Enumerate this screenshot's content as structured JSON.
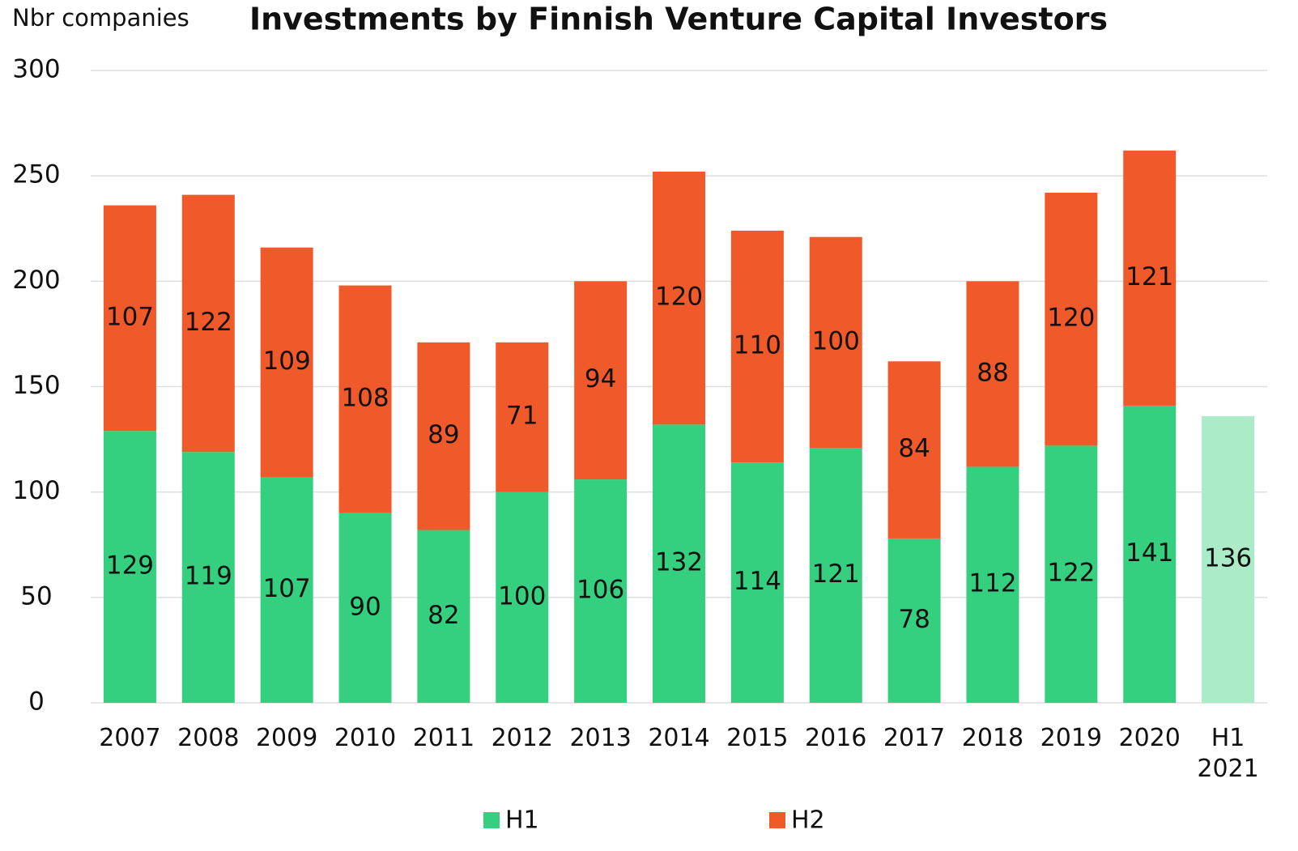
{
  "chart_data": {
    "type": "stacked_bar",
    "title": "Investments by Finnish Venture Capital Investors",
    "y_label": "Nbr companies",
    "categories": [
      "2007",
      "2008",
      "2009",
      "2010",
      "2011",
      "2012",
      "2013",
      "2014",
      "2015",
      "2016",
      "2017",
      "2018",
      "2019",
      "2020",
      "H1\n2021"
    ],
    "series": [
      {
        "name": "H1",
        "color": "#35d07f",
        "colors": [
          "#35d07f",
          "#35d07f",
          "#35d07f",
          "#35d07f",
          "#35d07f",
          "#35d07f",
          "#35d07f",
          "#35d07f",
          "#35d07f",
          "#35d07f",
          "#35d07f",
          "#35d07f",
          "#35d07f",
          "#35d07f",
          "#abebc8"
        ],
        "values": [
          129,
          119,
          107,
          90,
          82,
          100,
          106,
          132,
          114,
          121,
          78,
          112,
          122,
          141,
          136
        ]
      },
      {
        "name": "H2",
        "color": "#f05a2a",
        "values": [
          107,
          122,
          109,
          108,
          89,
          71,
          94,
          120,
          110,
          100,
          84,
          88,
          120,
          121,
          null
        ]
      }
    ],
    "ylim": [
      0,
      300
    ],
    "yticks": [
      0,
      50,
      100,
      150,
      200,
      250,
      300
    ],
    "grid": true,
    "legend": "bottom"
  }
}
